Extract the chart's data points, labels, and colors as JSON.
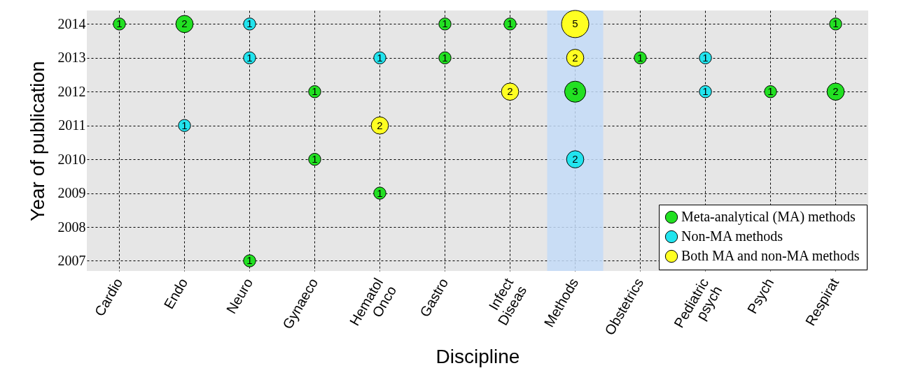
{
  "chart_data": {
    "type": "bubble",
    "xlabel": "Discipline",
    "ylabel": "Year of publication",
    "categories": [
      "Cardio",
      "Endo",
      "Neuro",
      "Gynaeco",
      "Hematol Onco",
      "Gastro",
      "Infect Diseas",
      "Methods",
      "Obstetrics",
      "Pediatric psych",
      "Psych",
      "Respirat"
    ],
    "ylim": [
      2006.7,
      2014.4
    ],
    "yticks": [
      2007,
      2008,
      2009,
      2010,
      2011,
      2012,
      2013,
      2014
    ],
    "grid": true,
    "legend": "bottom right",
    "bands": [
      {
        "axis": "x",
        "from": "Methods",
        "to": "Methods",
        "color": "#c3daf7"
      }
    ],
    "series": [
      {
        "name": "Meta-analytical (MA) methods",
        "color": "#22e022",
        "x": [
          "Cardio",
          "Endo",
          "Neuro",
          "Gynaeco",
          "Gynaeco",
          "Hematol Onco",
          "Gastro",
          "Gastro",
          "Infect Diseas",
          "Methods",
          "Obstetrics",
          "Psych",
          "Respirat",
          "Respirat"
        ],
        "values": [
          2014,
          2014,
          2007,
          2012,
          2010,
          2009,
          2014,
          2013,
          2014,
          2012,
          2013,
          2012,
          2014,
          2012
        ],
        "sizes": [
          1,
          2,
          1,
          1,
          1,
          1,
          1,
          1,
          1,
          3,
          1,
          1,
          1,
          2
        ],
        "value_labels": [
          "1",
          "2",
          "1",
          "1",
          "1",
          "1",
          "1",
          "1",
          "1",
          "3",
          "1",
          "1",
          "1",
          "2"
        ]
      },
      {
        "name": "Non-MA methods",
        "color": "#22e4ee",
        "x": [
          "Endo",
          "Neuro",
          "Neuro",
          "Hematol Onco",
          "Methods",
          "Pediatric psych",
          "Pediatric psych"
        ],
        "values": [
          2011,
          2014,
          2013,
          2013,
          2010,
          2013,
          2012
        ],
        "sizes": [
          1,
          1,
          1,
          1,
          2,
          1,
          1
        ],
        "value_labels": [
          "1",
          "1",
          "1",
          "1",
          "2",
          "1",
          "1"
        ]
      },
      {
        "name": "Both MA and non-MA methods",
        "color": "#ffff22",
        "x": [
          "Hematol Onco",
          "Infect Diseas",
          "Methods",
          "Methods"
        ],
        "values": [
          2011,
          2012,
          2014,
          2013
        ],
        "sizes": [
          2,
          2,
          5,
          2
        ],
        "value_labels": [
          "2",
          "2",
          "5",
          "2"
        ]
      }
    ]
  }
}
